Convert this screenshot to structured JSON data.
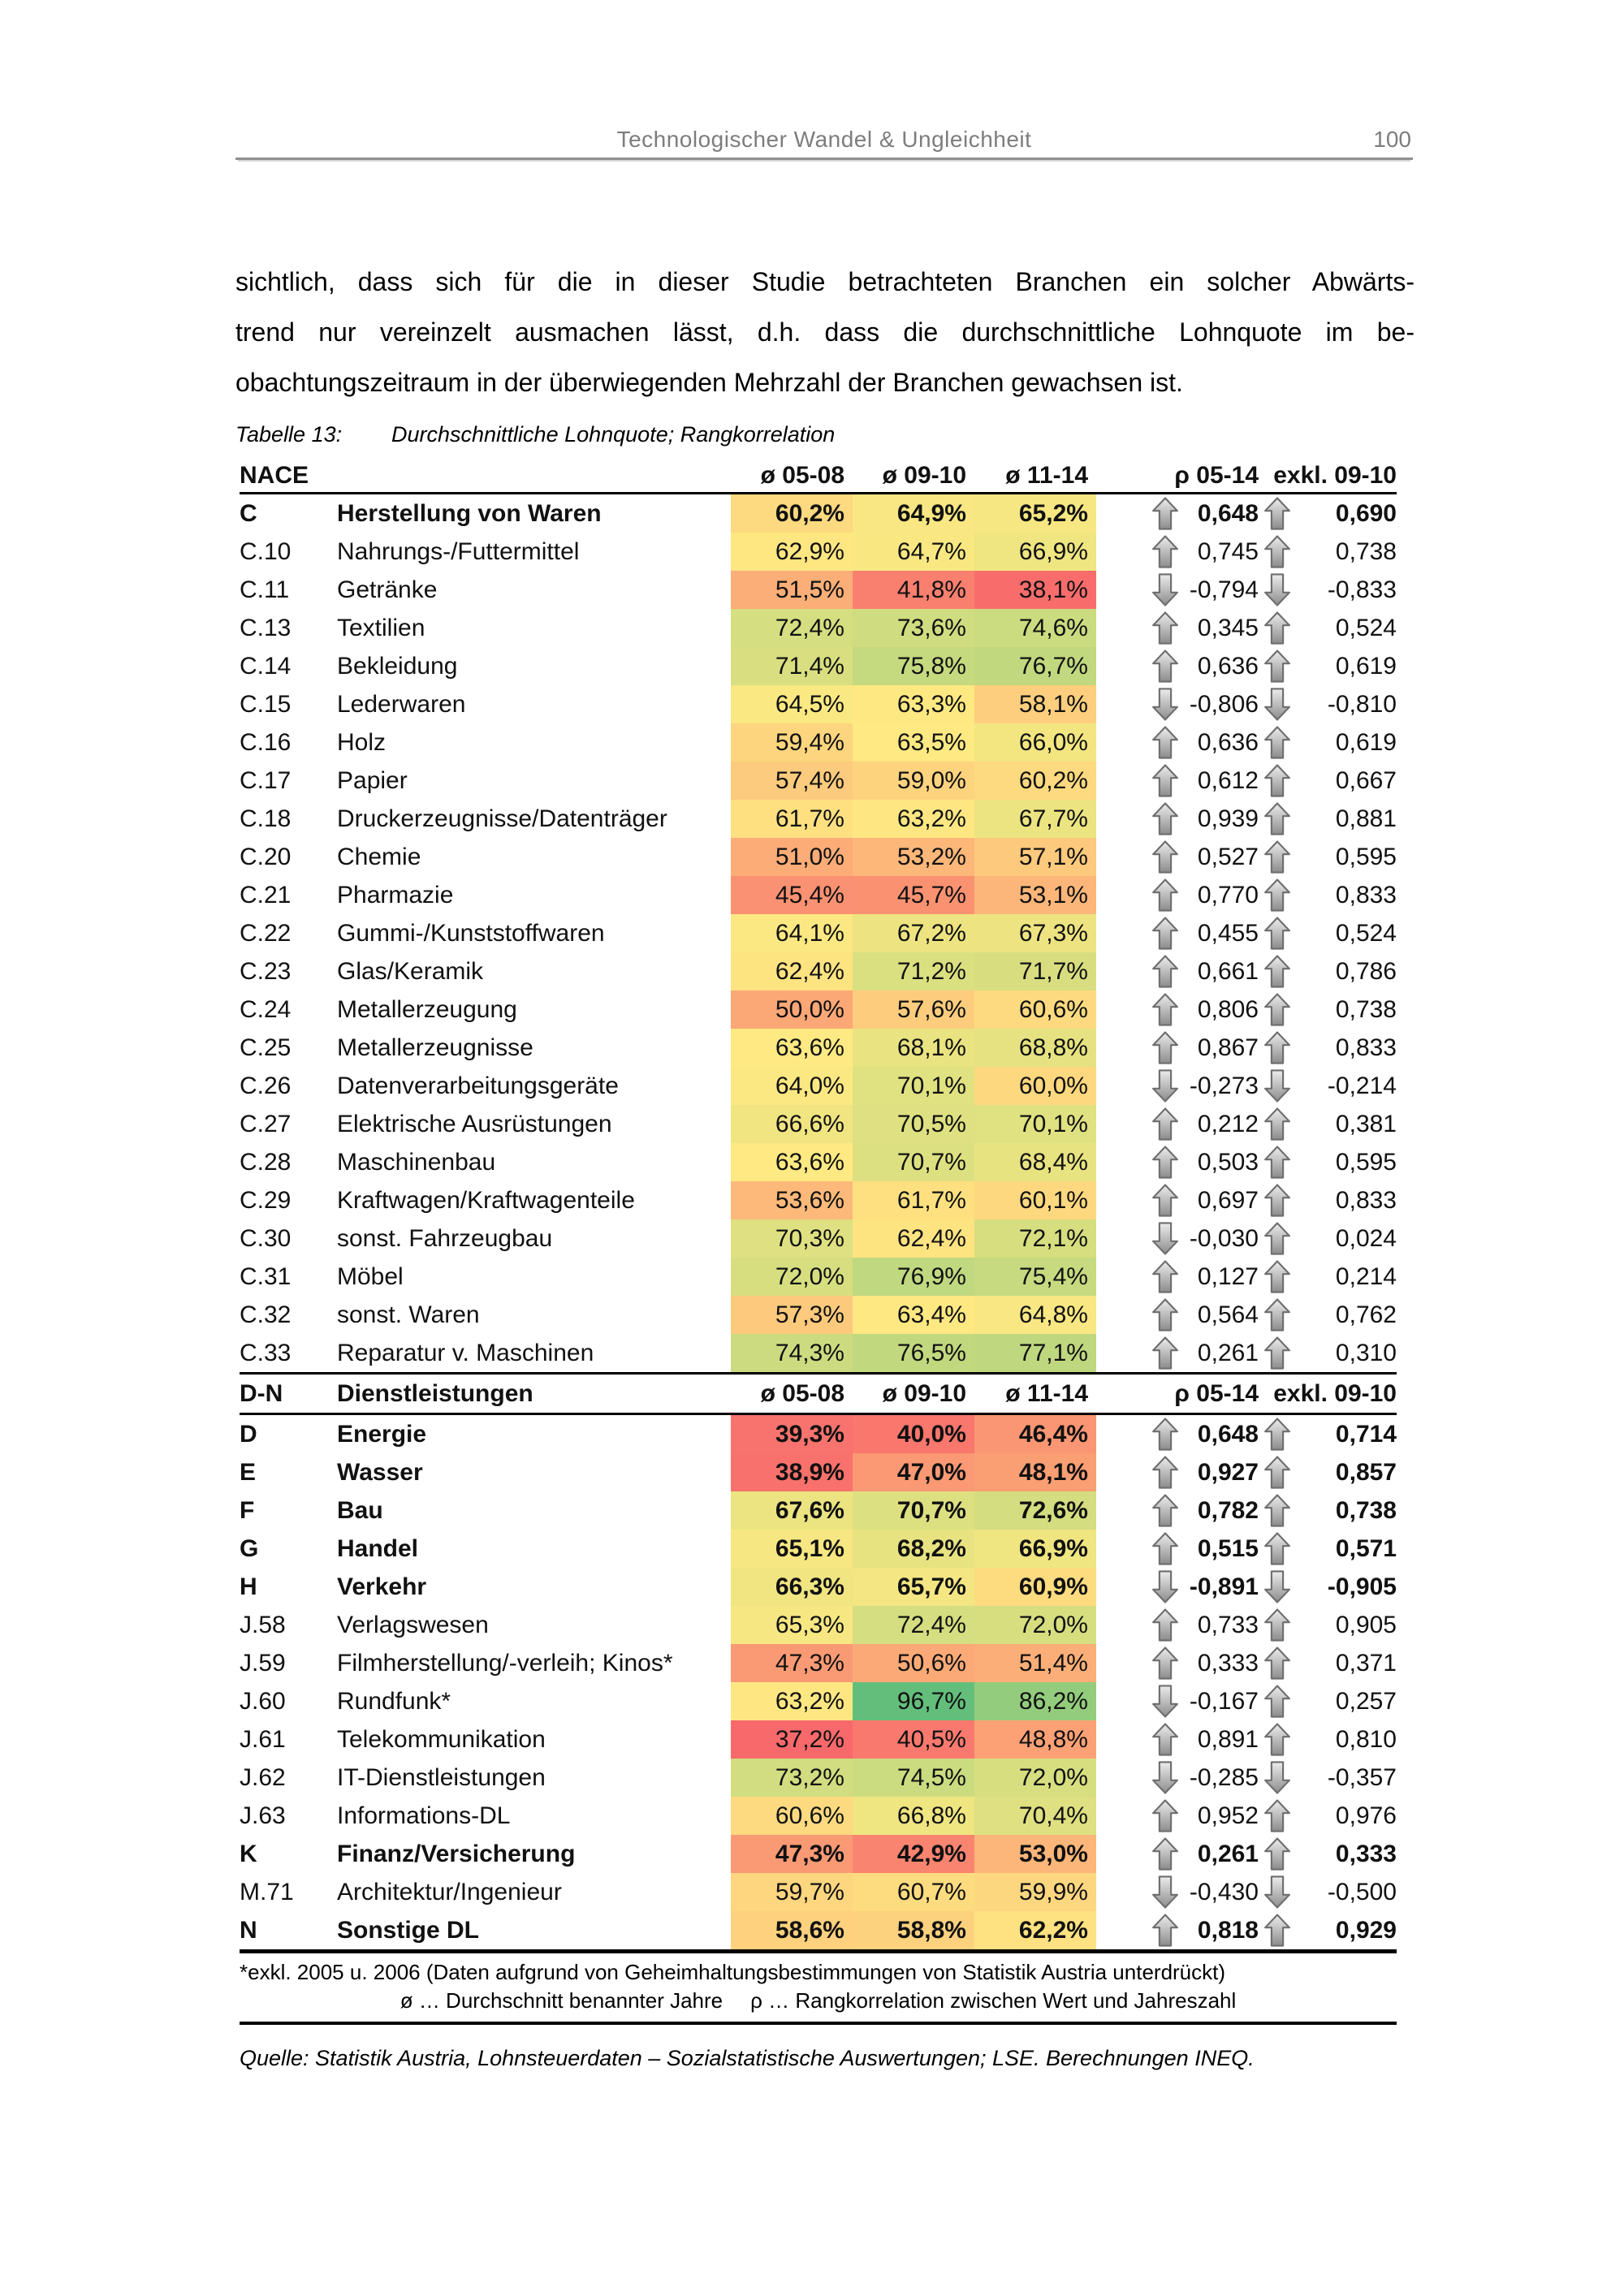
{
  "header": {
    "title": "Technologischer Wandel & Ungleichheit",
    "page_number": "100"
  },
  "paragraph_lines": [
    "sichtlich, dass sich für die in dieser Studie betrachteten Branchen ein solcher Abwärts-",
    "trend nur vereinzelt ausmachen lässt, d.h. dass die durchschnittliche Lohnquote im be-",
    "obachtungszeitraum in der überwiegenden Mehrzahl der Branchen gewachsen ist."
  ],
  "caption": {
    "label": "Tabelle 13:",
    "text": "Durchschnittliche Lohnquote; Rangkorrelation"
  },
  "table": {
    "col_headers": {
      "nace": "NACE",
      "avg": [
        "ø 05-08",
        "ø 09-10",
        "ø 11-14"
      ],
      "rho": "ρ 05-14",
      "excl": "exkl. 09-10"
    },
    "section2": {
      "code": "D-N",
      "name": "Dienstleistungen"
    },
    "manufacturing_rows": [
      {
        "code": "C",
        "name": "Herstellung von Waren",
        "bold": true,
        "avg": [
          60.2,
          64.9,
          65.2
        ],
        "rho": [
          0.648,
          0.69
        ]
      },
      {
        "code": "C.10",
        "name": "Nahrungs-/Futtermittel",
        "bold": false,
        "avg": [
          62.9,
          64.7,
          66.9
        ],
        "rho": [
          0.745,
          0.738
        ]
      },
      {
        "code": "C.11",
        "name": "Getränke",
        "bold": false,
        "avg": [
          51.5,
          41.8,
          38.1
        ],
        "rho": [
          -0.794,
          -0.833
        ]
      },
      {
        "code": "C.13",
        "name": "Textilien",
        "bold": false,
        "avg": [
          72.4,
          73.6,
          74.6
        ],
        "rho": [
          0.345,
          0.524
        ]
      },
      {
        "code": "C.14",
        "name": "Bekleidung",
        "bold": false,
        "avg": [
          71.4,
          75.8,
          76.7
        ],
        "rho": [
          0.636,
          0.619
        ]
      },
      {
        "code": "C.15",
        "name": "Lederwaren",
        "bold": false,
        "avg": [
          64.5,
          63.3,
          58.1
        ],
        "rho": [
          -0.806,
          -0.81
        ]
      },
      {
        "code": "C.16",
        "name": "Holz",
        "bold": false,
        "avg": [
          59.4,
          63.5,
          66.0
        ],
        "rho": [
          0.636,
          0.619
        ]
      },
      {
        "code": "C.17",
        "name": "Papier",
        "bold": false,
        "avg": [
          57.4,
          59.0,
          60.2
        ],
        "rho": [
          0.612,
          0.667
        ]
      },
      {
        "code": "C.18",
        "name": "Druckerzeugnisse/Datenträger",
        "bold": false,
        "avg": [
          61.7,
          63.2,
          67.7
        ],
        "rho": [
          0.939,
          0.881
        ]
      },
      {
        "code": "C.20",
        "name": "Chemie",
        "bold": false,
        "avg": [
          51.0,
          53.2,
          57.1
        ],
        "rho": [
          0.527,
          0.595
        ]
      },
      {
        "code": "C.21",
        "name": "Pharmazie",
        "bold": false,
        "avg": [
          45.4,
          45.7,
          53.1
        ],
        "rho": [
          0.77,
          0.833
        ]
      },
      {
        "code": "C.22",
        "name": "Gummi-/Kunststoffwaren",
        "bold": false,
        "avg": [
          64.1,
          67.2,
          67.3
        ],
        "rho": [
          0.455,
          0.524
        ]
      },
      {
        "code": "C.23",
        "name": "Glas/Keramik",
        "bold": false,
        "avg": [
          62.4,
          71.2,
          71.7
        ],
        "rho": [
          0.661,
          0.786
        ]
      },
      {
        "code": "C.24",
        "name": "Metallerzeugung",
        "bold": false,
        "avg": [
          50.0,
          57.6,
          60.6
        ],
        "rho": [
          0.806,
          0.738
        ]
      },
      {
        "code": "C.25",
        "name": "Metallerzeugnisse",
        "bold": false,
        "avg": [
          63.6,
          68.1,
          68.8
        ],
        "rho": [
          0.867,
          0.833
        ]
      },
      {
        "code": "C.26",
        "name": "Datenverarbeitungsgeräte",
        "bold": false,
        "avg": [
          64.0,
          70.1,
          60.0
        ],
        "rho": [
          -0.273,
          -0.214
        ]
      },
      {
        "code": "C.27",
        "name": "Elektrische Ausrüstungen",
        "bold": false,
        "avg": [
          66.6,
          70.5,
          70.1
        ],
        "rho": [
          0.212,
          0.381
        ]
      },
      {
        "code": "C.28",
        "name": "Maschinenbau",
        "bold": false,
        "avg": [
          63.6,
          70.7,
          68.4
        ],
        "rho": [
          0.503,
          0.595
        ]
      },
      {
        "code": "C.29",
        "name": "Kraftwagen/Kraftwagenteile",
        "bold": false,
        "avg": [
          53.6,
          61.7,
          60.1
        ],
        "rho": [
          0.697,
          0.833
        ]
      },
      {
        "code": "C.30",
        "name": "sonst. Fahrzeugbau",
        "bold": false,
        "avg": [
          70.3,
          62.4,
          72.1
        ],
        "rho": [
          -0.03,
          0.024
        ]
      },
      {
        "code": "C.31",
        "name": "Möbel",
        "bold": false,
        "avg": [
          72.0,
          76.9,
          75.4
        ],
        "rho": [
          0.127,
          0.214
        ]
      },
      {
        "code": "C.32",
        "name": "sonst. Waren",
        "bold": false,
        "avg": [
          57.3,
          63.4,
          64.8
        ],
        "rho": [
          0.564,
          0.762
        ]
      },
      {
        "code": "C.33",
        "name": "Reparatur v. Maschinen",
        "bold": false,
        "avg": [
          74.3,
          76.5,
          77.1
        ],
        "rho": [
          0.261,
          0.31
        ]
      }
    ],
    "services_rows": [
      {
        "code": "D",
        "name": "Energie",
        "bold": true,
        "avg": [
          39.3,
          40.0,
          46.4
        ],
        "rho": [
          0.648,
          0.714
        ]
      },
      {
        "code": "E",
        "name": "Wasser",
        "bold": true,
        "avg": [
          38.9,
          47.0,
          48.1
        ],
        "rho": [
          0.927,
          0.857
        ]
      },
      {
        "code": "F",
        "name": "Bau",
        "bold": true,
        "avg": [
          67.6,
          70.7,
          72.6
        ],
        "rho": [
          0.782,
          0.738
        ]
      },
      {
        "code": "G",
        "name": "Handel",
        "bold": true,
        "avg": [
          65.1,
          68.2,
          66.9
        ],
        "rho": [
          0.515,
          0.571
        ]
      },
      {
        "code": "H",
        "name": "Verkehr",
        "bold": true,
        "avg": [
          66.3,
          65.7,
          60.9
        ],
        "rho": [
          -0.891,
          -0.905
        ]
      },
      {
        "code": "J.58",
        "name": "Verlagswesen",
        "bold": false,
        "avg": [
          65.3,
          72.4,
          72.0
        ],
        "rho": [
          0.733,
          0.905
        ]
      },
      {
        "code": "J.59",
        "name": "Filmherstellung/-verleih; Kinos*",
        "bold": false,
        "avg": [
          47.3,
          50.6,
          51.4
        ],
        "rho": [
          0.333,
          0.371
        ]
      },
      {
        "code": "J.60",
        "name": "Rundfunk*",
        "bold": false,
        "avg": [
          63.2,
          96.7,
          86.2
        ],
        "rho": [
          -0.167,
          0.257
        ]
      },
      {
        "code": "J.61",
        "name": "Telekommunikation",
        "bold": false,
        "avg": [
          37.2,
          40.5,
          48.8
        ],
        "rho": [
          0.891,
          0.81
        ]
      },
      {
        "code": "J.62",
        "name": "IT-Dienstleistungen",
        "bold": false,
        "avg": [
          73.2,
          74.5,
          72.0
        ],
        "rho": [
          -0.285,
          -0.357
        ]
      },
      {
        "code": "J.63",
        "name": "Informations-DL",
        "bold": false,
        "avg": [
          60.6,
          66.8,
          70.4
        ],
        "rho": [
          0.952,
          0.976
        ]
      },
      {
        "code": "K",
        "name": "Finanz/Versicherung",
        "bold": true,
        "avg": [
          47.3,
          42.9,
          53.0
        ],
        "rho": [
          0.261,
          0.333
        ]
      },
      {
        "code": "M.71",
        "name": "Architektur/Ingenieur",
        "bold": false,
        "avg": [
          59.7,
          60.7,
          59.9
        ],
        "rho": [
          -0.43,
          -0.5
        ]
      },
      {
        "code": "N",
        "name": "Sonstige DL",
        "bold": true,
        "avg": [
          58.6,
          58.8,
          62.2
        ],
        "rho": [
          0.818,
          0.929
        ]
      }
    ],
    "colors": {
      "scale_min": "#F8696B",
      "scale_mid": "#FEE982",
      "scale_max": "#63BE7B",
      "arrow_fill_light": "#E9E9E9",
      "arrow_fill_dark": "#8E8E8E",
      "arrow_stroke": "#6E6E6E"
    },
    "footnote_star": "*exkl. 2005 u. 2006 (Daten aufgrund von Geheimhaltungsbestimmungen von Statistik Austria unterdrückt)",
    "footnote_symbols": [
      "ø … Durchschnitt benannter Jahre",
      "ρ … Rangkorrelation zwischen Wert und Jahreszahl"
    ]
  },
  "source": "Quelle: Statistik Austria, Lohnsteuerdaten – Sozialstatistische Auswertungen; LSE. Berechnungen INEQ."
}
